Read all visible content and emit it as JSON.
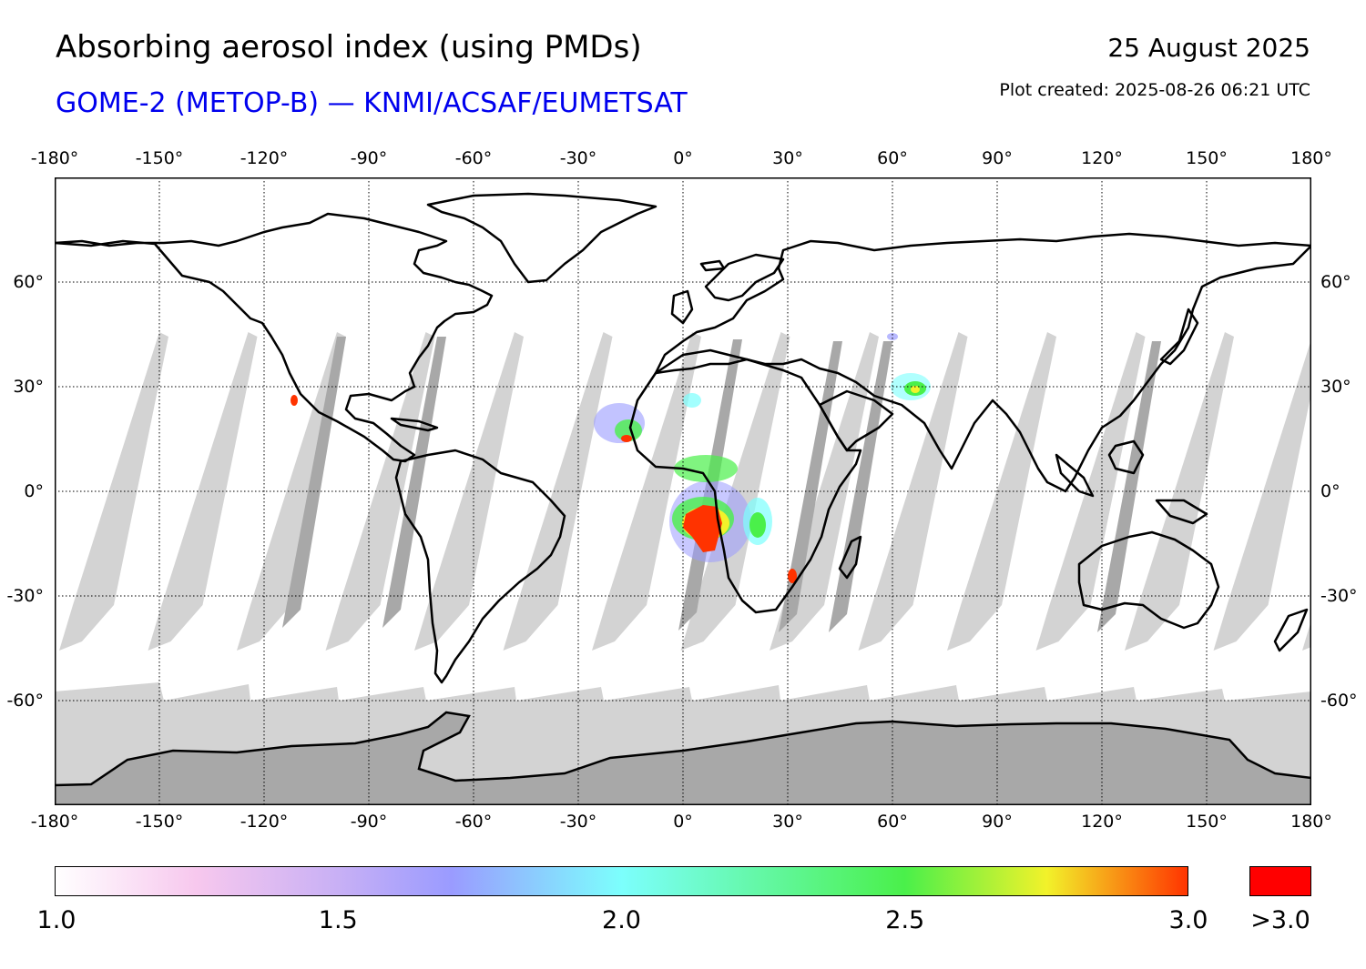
{
  "header": {
    "title": "Absorbing aerosol index (using PMDs)",
    "subtitle": "GOME-2 (METOP-B) — KNMI/ACSAF/EUMETSAT",
    "subtitle_color": "#0000ee",
    "date": "25 August 2025",
    "created": "Plot created: 2025-08-26 06:21 UTC"
  },
  "map": {
    "projection": "equirectangular",
    "lon_range": [
      -180,
      180
    ],
    "lat_range": [
      -90,
      90
    ],
    "lon_ticks": [
      "-180°",
      "-150°",
      "-120°",
      "-90°",
      "-60°",
      "-30°",
      "0°",
      "30°",
      "60°",
      "90°",
      "120°",
      "150°",
      "180°"
    ],
    "lon_tick_values": [
      -180,
      -150,
      -120,
      -90,
      -60,
      -30,
      0,
      30,
      60,
      90,
      120,
      150,
      180
    ],
    "lat_ticks": [
      "60°",
      "30°",
      "0°",
      "-30°",
      "-60°"
    ],
    "lat_tick_values": [
      60,
      30,
      0,
      -30,
      -60
    ],
    "grid": "dotted",
    "colors": {
      "no_data": "#d3d3d3",
      "missing_strip": "#a8a8a8",
      "coastline": "#000000"
    }
  },
  "colorbar": {
    "labels": [
      "1.0",
      "1.5",
      "2.0",
      "2.5",
      "3.0"
    ],
    "values": [
      1.0,
      1.5,
      2.0,
      2.5,
      3.0
    ],
    "overflow_label": ">3.0",
    "overflow_color": "#ff0000",
    "stops": [
      {
        "value": 1.0,
        "color": "#ffffff"
      },
      {
        "value": 1.25,
        "color": "#f7c8ee"
      },
      {
        "value": 1.5,
        "color": "#c8b0f5"
      },
      {
        "value": 1.7,
        "color": "#9a9bff"
      },
      {
        "value": 2.0,
        "color": "#7cfffd"
      },
      {
        "value": 2.5,
        "color": "#4af04a"
      },
      {
        "value": 2.75,
        "color": "#f2f22a"
      },
      {
        "value": 3.0,
        "color": "#ff3300"
      }
    ]
  }
}
